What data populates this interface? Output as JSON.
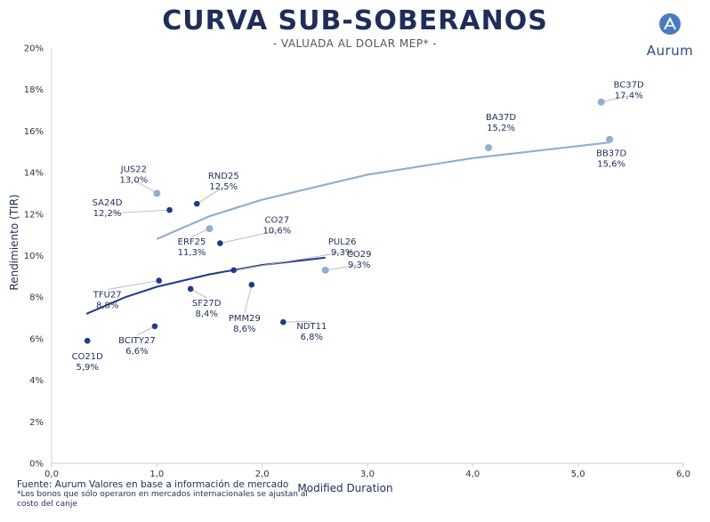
{
  "header": {
    "title": "CURVA SUB-SOBERANOS",
    "subtitle": "- VALUADA AL DOLAR MEP* -"
  },
  "brand": {
    "name": "Aurum",
    "icon": "aurum-logo-icon"
  },
  "footer": {
    "source": "Fuente: Aurum Valores en base a información de mercado",
    "note": "*Los bonos que sólo operaron en mercados internacionales se ajustan al costo del canje"
  },
  "colors": {
    "dark_series": "#1f3a8a",
    "light_series": "#8fb0cf",
    "axis": "#cccccc",
    "leader": "#b0b0b0"
  },
  "chart_data": {
    "type": "scatter",
    "xlabel": "Modified Duration",
    "ylabel": "Rendimiento (TIR)",
    "xlim": [
      0,
      6
    ],
    "ylim": [
      0,
      20
    ],
    "x_ticks": [
      "0,0",
      "1,0",
      "2,0",
      "3,0",
      "4,0",
      "5,0",
      "6,0"
    ],
    "y_ticks": [
      "0%",
      "2%",
      "4%",
      "6%",
      "8%",
      "10%",
      "12%",
      "14%",
      "16%",
      "18%",
      "20%"
    ],
    "grid": false,
    "series": [
      {
        "color": "#1f3a8a",
        "points": [
          {
            "name": "CO21D",
            "yield_label": "5,9%",
            "x": 0.34,
            "y": 5.9
          },
          {
            "name": "BCITY27",
            "yield_label": "6,6%",
            "x": 0.98,
            "y": 6.6
          },
          {
            "name": "TFU27",
            "yield_label": "8,8%",
            "x": 1.02,
            "y": 8.8
          },
          {
            "name": "SA24D",
            "yield_label": "12,2%",
            "x": 1.12,
            "y": 12.2
          },
          {
            "name": "RND25",
            "yield_label": "12,5%",
            "x": 1.38,
            "y": 12.5
          },
          {
            "name": "SF27D",
            "yield_label": "8,4%",
            "x": 1.32,
            "y": 8.4
          },
          {
            "name": "CO27",
            "yield_label": "10,6%",
            "x": 1.6,
            "y": 10.6
          },
          {
            "name": "PUL26",
            "yield_label": "9,3%",
            "x": 1.73,
            "y": 9.3
          },
          {
            "name": "PMM29",
            "yield_label": "8,6%",
            "x": 1.9,
            "y": 8.6
          },
          {
            "name": "NDT11",
            "yield_label": "6,8%",
            "x": 2.2,
            "y": 6.8
          }
        ],
        "trend": [
          [
            0.33,
            7.2
          ],
          [
            0.7,
            8.0
          ],
          [
            1.0,
            8.5
          ],
          [
            1.5,
            9.1
          ],
          [
            2.0,
            9.55
          ],
          [
            2.6,
            9.9
          ]
        ]
      },
      {
        "color": "#8fb0cf",
        "points": [
          {
            "name": "JUS22",
            "yield_label": "13,0%",
            "x": 1.0,
            "y": 13.0
          },
          {
            "name": "ERF25",
            "yield_label": "11,3%",
            "x": 1.5,
            "y": 11.3
          },
          {
            "name": "CO29",
            "yield_label": "9,3%",
            "x": 2.6,
            "y": 9.3
          },
          {
            "name": "BA37D",
            "yield_label": "15,2%",
            "x": 4.15,
            "y": 15.2
          },
          {
            "name": "BC37D",
            "yield_label": "17,4%",
            "x": 5.22,
            "y": 17.4
          },
          {
            "name": "BB37D",
            "yield_label": "15,6%",
            "x": 5.3,
            "y": 15.6
          }
        ],
        "trend": [
          [
            1.0,
            10.8
          ],
          [
            1.5,
            11.9
          ],
          [
            2.0,
            12.7
          ],
          [
            3.0,
            13.9
          ],
          [
            4.0,
            14.7
          ],
          [
            5.3,
            15.45
          ]
        ]
      }
    ]
  }
}
